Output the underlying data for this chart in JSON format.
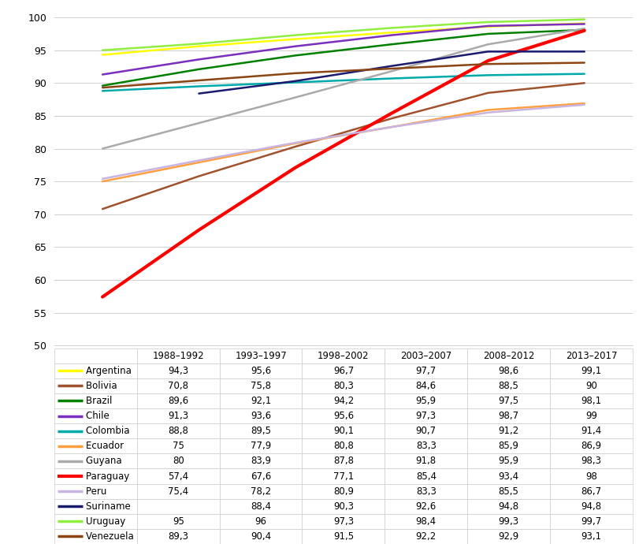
{
  "x_labels": [
    "1988–1992",
    "1993–1997",
    "1998–2002",
    "2003–2007",
    "2008–2012",
    "2013–2017"
  ],
  "x_positions": [
    0,
    1,
    2,
    3,
    4,
    5
  ],
  "countries": [
    {
      "name": "Argentina",
      "color": "#FFFF00",
      "values": [
        94.3,
        95.6,
        96.7,
        97.7,
        98.6,
        99.1
      ]
    },
    {
      "name": "Bolivia",
      "color": "#A0522D",
      "values": [
        70.8,
        75.8,
        80.3,
        84.6,
        88.5,
        90.0
      ]
    },
    {
      "name": "Brazil",
      "color": "#008000",
      "values": [
        89.6,
        92.1,
        94.2,
        95.9,
        97.5,
        98.1
      ]
    },
    {
      "name": "Chile",
      "color": "#7B2FBE",
      "values": [
        91.3,
        93.6,
        95.6,
        97.3,
        98.7,
        99.0
      ]
    },
    {
      "name": "Colombia",
      "color": "#00AAAA",
      "values": [
        88.8,
        89.5,
        90.1,
        90.7,
        91.2,
        91.4
      ]
    },
    {
      "name": "Ecuador",
      "color": "#FFA040",
      "values": [
        75.0,
        77.9,
        80.8,
        83.3,
        85.9,
        86.9
      ]
    },
    {
      "name": "Guyana",
      "color": "#AAAAAA",
      "values": [
        80.0,
        83.9,
        87.8,
        91.8,
        95.9,
        98.3
      ]
    },
    {
      "name": "Paraguay",
      "color": "#FF0000",
      "values": [
        57.4,
        67.6,
        77.1,
        85.4,
        93.4,
        98.0
      ]
    },
    {
      "name": "Peru",
      "color": "#C8B4E0",
      "values": [
        75.4,
        78.2,
        80.9,
        83.3,
        85.5,
        86.7
      ]
    },
    {
      "name": "Suriname",
      "color": "#1A1A6E",
      "values": [
        null,
        88.4,
        90.3,
        92.6,
        94.8,
        94.8
      ]
    },
    {
      "name": "Uruguay",
      "color": "#90EE40",
      "values": [
        95.0,
        96.0,
        97.3,
        98.4,
        99.3,
        99.7
      ]
    },
    {
      "name": "Venezuela",
      "color": "#8B4513",
      "values": [
        89.3,
        90.4,
        91.5,
        92.2,
        92.9,
        93.1
      ]
    }
  ],
  "ylim": [
    50,
    101
  ],
  "yticks": [
    50,
    55,
    60,
    65,
    70,
    75,
    80,
    85,
    90,
    95,
    100
  ],
  "figure_size": [
    8.11,
    6.9
  ],
  "dpi": 100
}
